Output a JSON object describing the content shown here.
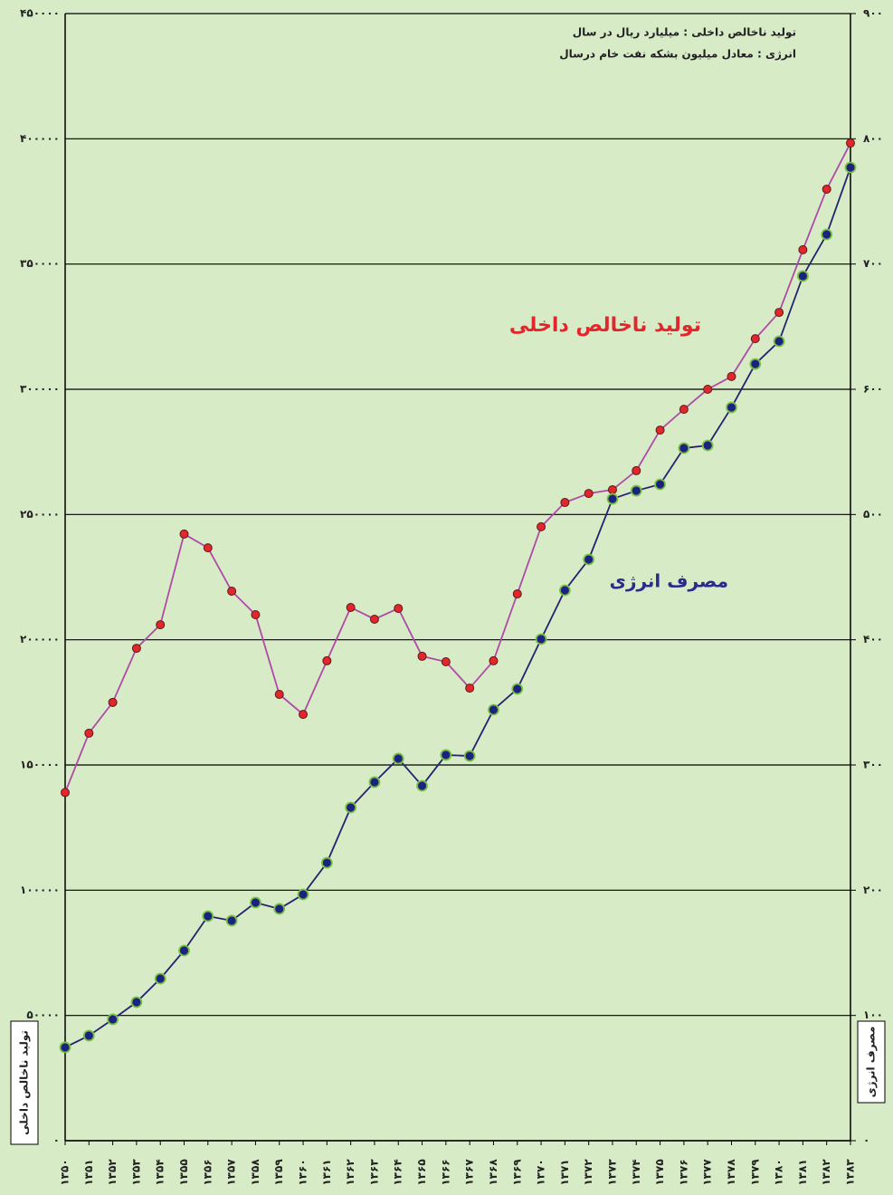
{
  "chart_data": {
    "type": "line",
    "annotations": [
      "تولید ناخالص داخلی : میلیارد ریال در سال",
      "انرژی : معادل میلیون بشکه نفت خام درسال"
    ],
    "y_label": "تولید ناخالص داخلی",
    "y2_label": "مصرف انرژی",
    "categories": [
      "۱۳۵۰",
      "۱۳۵۱",
      "۱۳۵۲",
      "۱۳۵۳",
      "۱۳۵۴",
      "۱۳۵۵",
      "۱۳۵۶",
      "۱۳۵۷",
      "۱۳۵۸",
      "۱۳۵۹",
      "۱۳۶۰",
      "۱۳۶۱",
      "۱۳۶۲",
      "۱۳۶۳",
      "۱۳۶۴",
      "۱۳۶۵",
      "۱۳۶۶",
      "۱۳۶۷",
      "۱۳۶۸",
      "۱۳۶۹",
      "۱۳۷۰",
      "۱۳۷۱",
      "۱۳۷۲",
      "۱۳۷۳",
      "۱۳۷۴",
      "۱۳۷۵",
      "۱۳۷۶",
      "۱۳۷۷",
      "۱۳۷۸",
      "۱۳۷۹",
      "۱۳۸۰",
      "۱۳۸۱",
      "۱۳۸۲",
      "۱۳۸۳"
    ],
    "series": [
      {
        "name": "تولید ناخالص داخلی",
        "color": "#b04aa8",
        "marker_color": "#e3262b",
        "marker_edge": "#5a1a1a",
        "axis": "y",
        "values": [
          139000,
          162700,
          175000,
          196600,
          206000,
          242200,
          236700,
          219400,
          210000,
          178200,
          170200,
          191600,
          212900,
          208200,
          212500,
          193400,
          191200,
          180700,
          191600,
          218300,
          245100,
          254800,
          258400,
          259900,
          267500,
          283700,
          292000,
          300000,
          305100,
          320200,
          330700,
          355700,
          379900,
          398300
        ]
      },
      {
        "name": "مصرف انرژی",
        "color": "#23236e",
        "marker_color": "#1c2280",
        "marker_edge": "#7ac143",
        "axis": "y2",
        "values": [
          74.5,
          83.9,
          96.9,
          110.6,
          129.4,
          151.8,
          179.3,
          175.7,
          190.1,
          185.1,
          196.6,
          221.9,
          266,
          286.3,
          305.1,
          283.4,
          308,
          307.2,
          344.1,
          360.7,
          400.5,
          439.5,
          464.1,
          512.5,
          519,
          524.1,
          553,
          555.2,
          585.5,
          620.2,
          638.3,
          690.4,
          723.6,
          777.1
        ]
      }
    ],
    "ylim": [
      0,
      450000
    ],
    "yticks": [
      {
        "value": 0,
        "label": "۰"
      },
      {
        "value": 50000,
        "label": "۵۰۰۰۰"
      },
      {
        "value": 100000,
        "label": "۱۰۰۰۰۰"
      },
      {
        "value": 150000,
        "label": "۱۵۰۰۰۰"
      },
      {
        "value": 200000,
        "label": "۲۰۰۰۰۰"
      },
      {
        "value": 250000,
        "label": "۲۵۰۰۰۰"
      },
      {
        "value": 300000,
        "label": "۳۰۰۰۰۰"
      },
      {
        "value": 350000,
        "label": "۳۵۰۰۰۰"
      },
      {
        "value": 400000,
        "label": "۴۰۰۰۰۰"
      },
      {
        "value": 450000,
        "label": "۴۵۰۰۰۰"
      }
    ],
    "y2lim": [
      0,
      900
    ],
    "y2ticks": [
      {
        "value": 0,
        "label": "۰"
      },
      {
        "value": 100,
        "label": "۱۰۰"
      },
      {
        "value": 200,
        "label": "۲۰۰"
      },
      {
        "value": 300,
        "label": "۳۰۰"
      },
      {
        "value": 400,
        "label": "۴۰۰"
      },
      {
        "value": 500,
        "label": "۵۰۰"
      },
      {
        "value": 600,
        "label": "۶۰۰"
      },
      {
        "value": 700,
        "label": "۷۰۰"
      },
      {
        "value": 800,
        "label": "۸۰۰"
      },
      {
        "value": 900,
        "label": "۹۰۰"
      }
    ],
    "grid": true
  }
}
